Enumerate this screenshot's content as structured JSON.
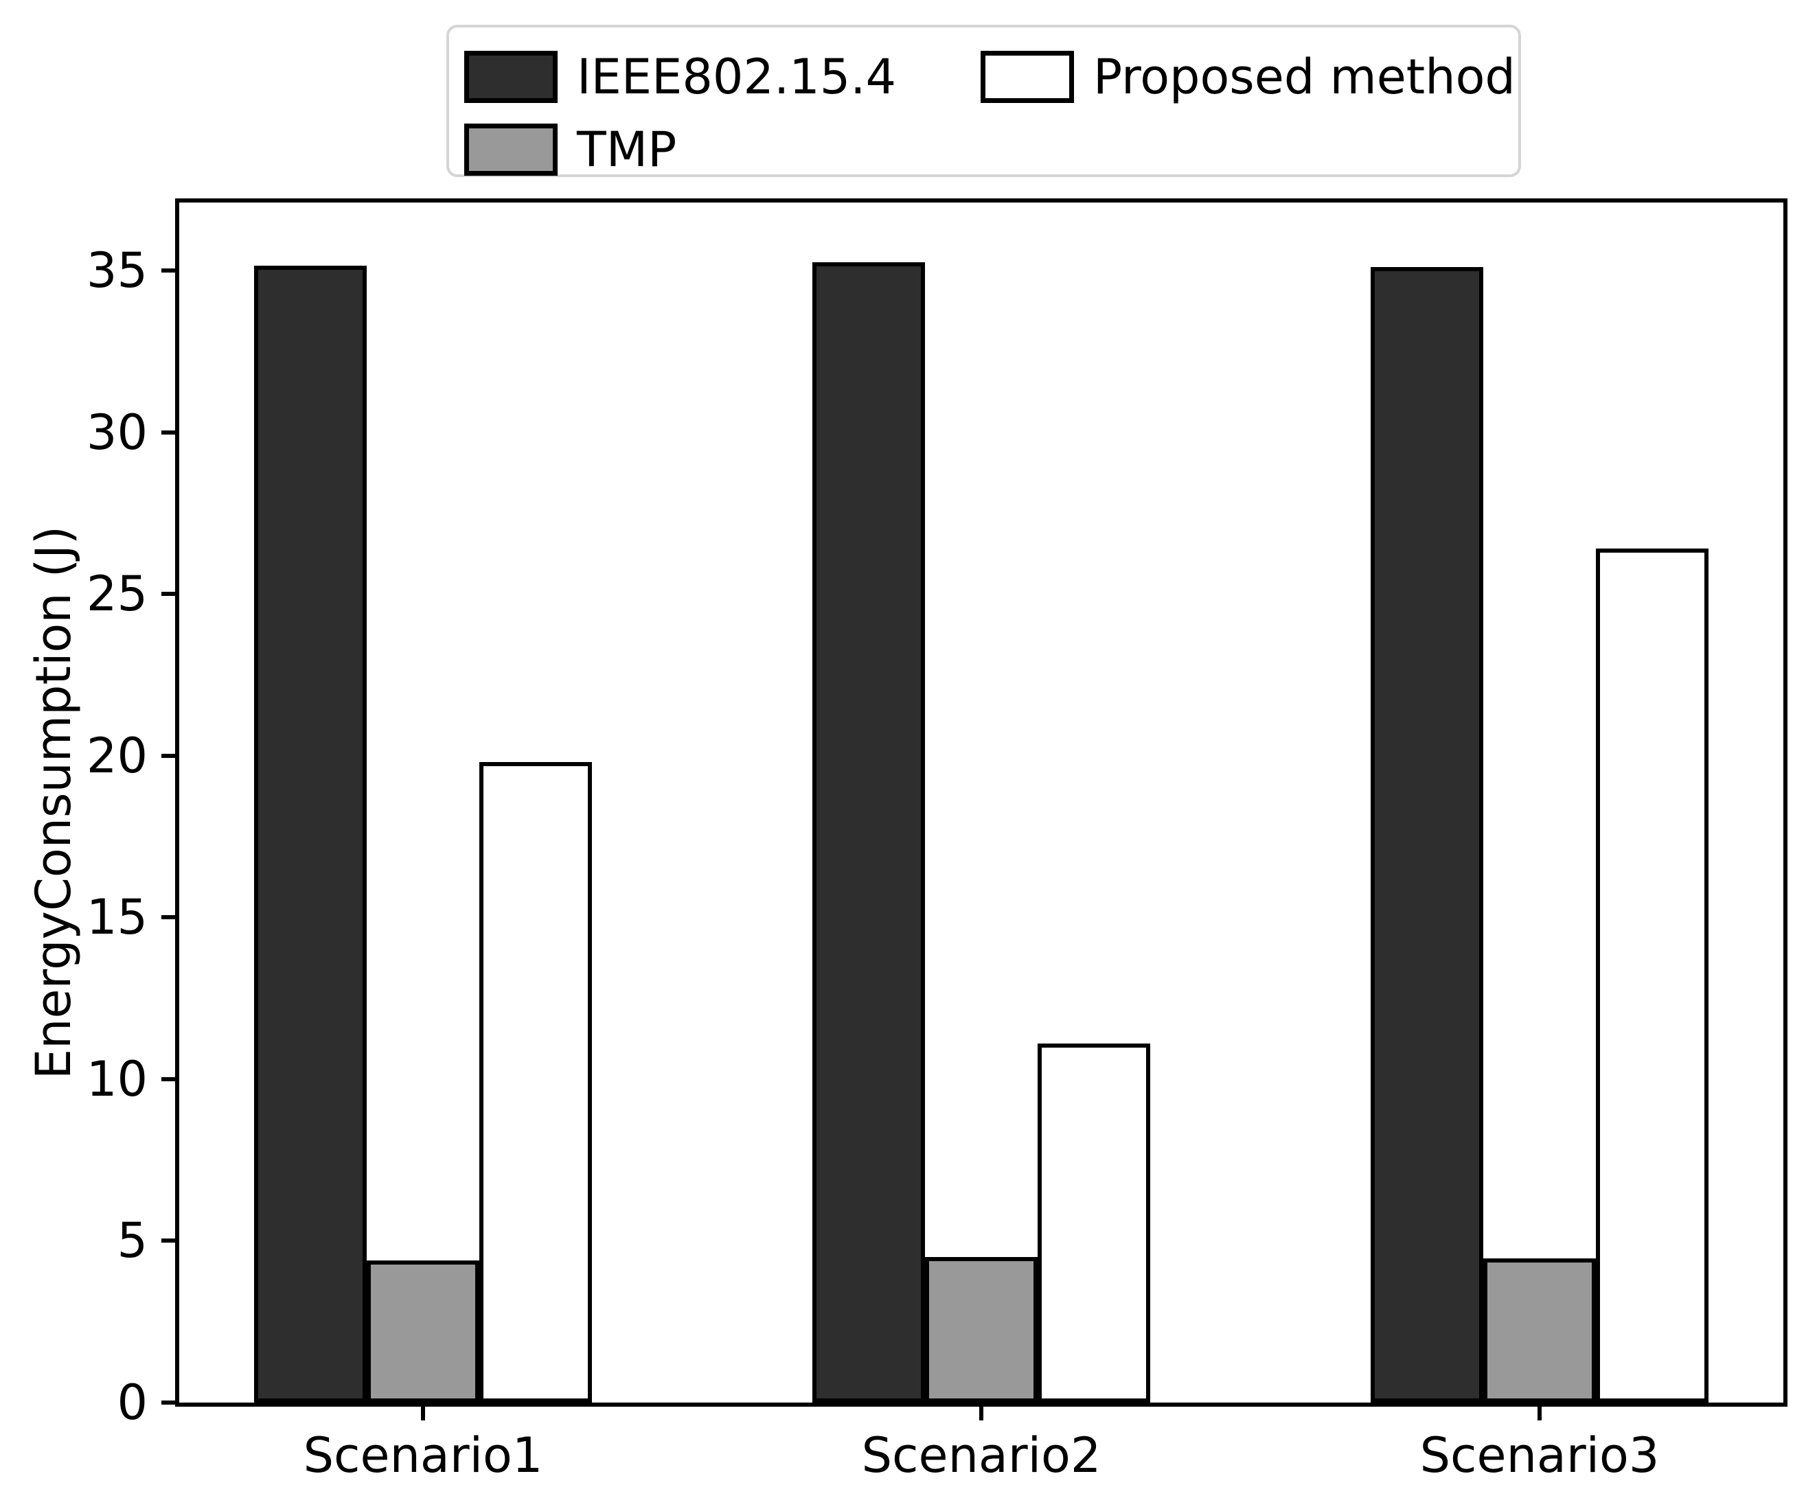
{
  "figure": {
    "background": "#ffffff",
    "text_color": "#000000",
    "spine_color": "#000000"
  },
  "legend": {
    "position": "upper center, 2 columns",
    "border_color": "#d5d5d5"
  },
  "chart_data": {
    "type": "bar",
    "title": "",
    "xlabel": "",
    "ylabel": "EnergyConsumption (J)",
    "categories": [
      "Scenario1",
      "Scenario2",
      "Scenario3"
    ],
    "series": [
      {
        "name": "IEEE802.15.4",
        "color": "#2e2e2e",
        "values": [
          35.15,
          35.25,
          35.1
        ]
      },
      {
        "name": "TMP",
        "color": "#999999",
        "values": [
          4.4,
          4.5,
          4.45
        ]
      },
      {
        "name": "Proposed method",
        "color": "#ffffff",
        "values": [
          19.8,
          11.1,
          26.4
        ]
      }
    ],
    "bar_edge_color": "#000000",
    "ylim": [
      0,
      37.1
    ],
    "yticks": [
      0,
      5,
      10,
      15,
      20,
      25,
      30,
      35
    ],
    "grid": false,
    "legend_position": "upper center, outside plot, 2 columns"
  }
}
